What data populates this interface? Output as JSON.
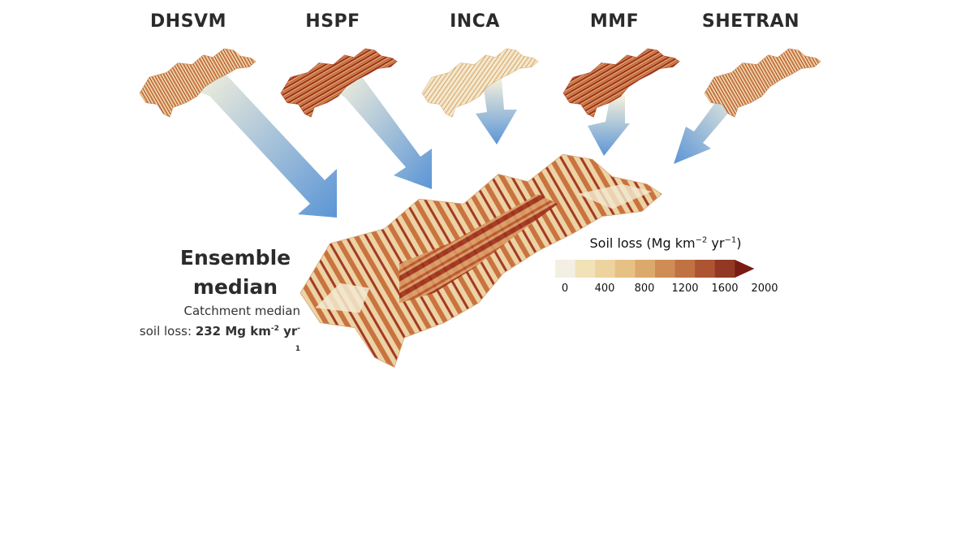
{
  "models": [
    {
      "label": "DHSVM"
    },
    {
      "label": "HSPF"
    },
    {
      "label": "INCA"
    },
    {
      "label": "MMF"
    },
    {
      "label": "SHETRAN"
    }
  ],
  "ensemble": {
    "title_line1": "Ensemble",
    "title_line2": "median",
    "subtitle_line1": "Catchment median",
    "subtitle_prefix": "soil loss:",
    "value": "232 Mg km",
    "exp1": "-2",
    "mid": " yr",
    "exp2": "-1"
  },
  "legend": {
    "title_text": "Soil loss (Mg km",
    "title_exp1": "−2",
    "title_mid": " yr",
    "title_exp2": "−1",
    "title_close": ")",
    "ticks": [
      "0",
      "400",
      "800",
      "1200",
      "1600",
      "2000"
    ],
    "colors": [
      "#f3efe2",
      "#f1e2b8",
      "#edd39e",
      "#e6c184",
      "#dca96c",
      "#cf8d55",
      "#c07243",
      "#ad5432",
      "#933923",
      "#7a1b14"
    ]
  },
  "colors": {
    "arrow_start": "#f5f1dc",
    "arrow_end": "#5b95d6",
    "map_light": "#f2eacb",
    "map_mid": "#d79b62",
    "map_dark": "#9c2f1c"
  }
}
